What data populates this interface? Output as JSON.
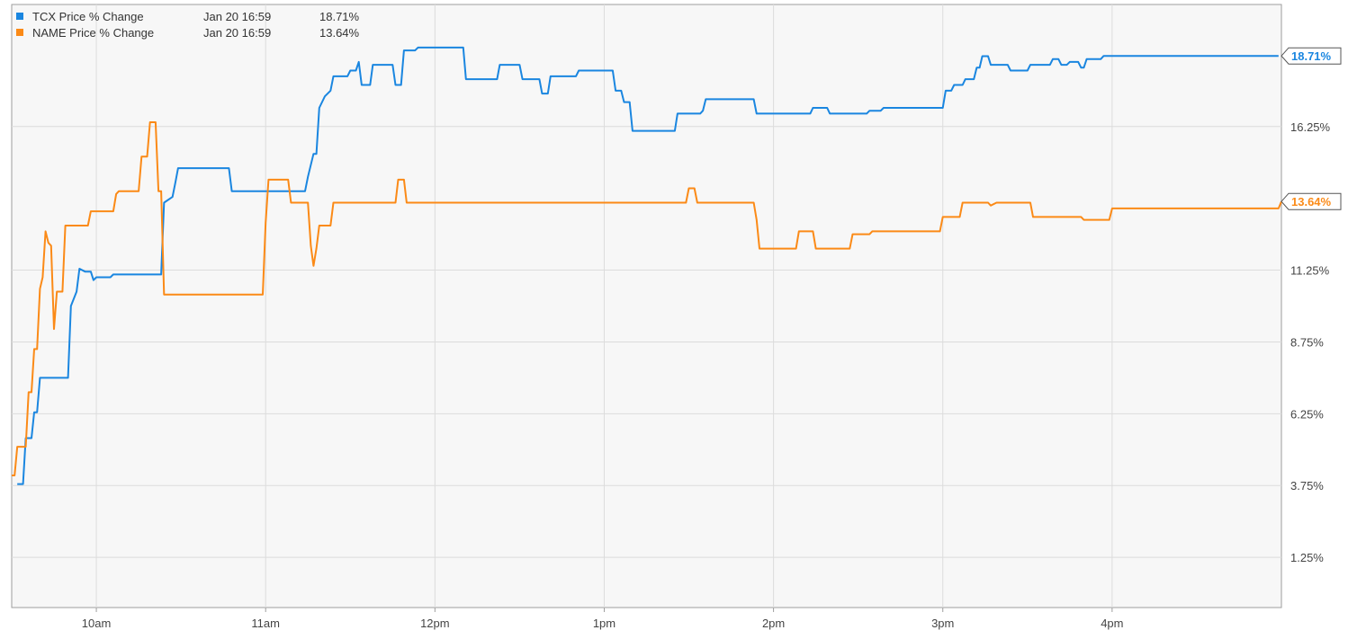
{
  "legend": {
    "series": [
      {
        "name": "TCX Price % Change",
        "time": "Jan 20 16:59",
        "value": "18.71%",
        "color": "#1a86e0"
      },
      {
        "name": "NAME Price % Change",
        "time": "Jan 20 16:59",
        "value": "13.64%",
        "color": "#fb8a17"
      }
    ]
  },
  "chart_data": {
    "type": "line",
    "x_unit": "hours of day (24h clock)",
    "xlim": [
      9.5,
      17.0
    ],
    "ylim": [
      -0.5,
      20.5
    ],
    "y_ticks": [
      1.25,
      3.75,
      6.25,
      8.75,
      11.25,
      16.25
    ],
    "y_tick_labels": [
      "1.25%",
      "3.75%",
      "6.25%",
      "8.75%",
      "11.25%",
      "16.25%"
    ],
    "x_ticks": [
      10,
      11,
      12,
      13,
      14,
      15,
      16
    ],
    "x_tick_labels": [
      "10am",
      "11am",
      "12pm",
      "1pm",
      "2pm",
      "3pm",
      "4pm"
    ],
    "grid": true,
    "legend_position": "top-left",
    "end_labels": [
      "18.71%",
      "13.64%"
    ],
    "series": [
      {
        "name": "TCX Price % Change",
        "color": "#1a86e0",
        "points": [
          [
            9.533,
            3.8
          ],
          [
            9.567,
            3.8
          ],
          [
            9.583,
            5.4
          ],
          [
            9.617,
            5.4
          ],
          [
            9.633,
            6.3
          ],
          [
            9.65,
            6.3
          ],
          [
            9.667,
            7.5
          ],
          [
            9.833,
            7.5
          ],
          [
            9.85,
            10.0
          ],
          [
            9.883,
            10.5
          ],
          [
            9.9,
            11.3
          ],
          [
            9.933,
            11.2
          ],
          [
            9.967,
            11.2
          ],
          [
            9.983,
            10.9
          ],
          [
            10.0,
            11.0
          ],
          [
            10.083,
            11.0
          ],
          [
            10.1,
            11.1
          ],
          [
            10.383,
            11.1
          ],
          [
            10.4,
            13.6
          ],
          [
            10.45,
            13.8
          ],
          [
            10.467,
            14.3
          ],
          [
            10.483,
            14.8
          ],
          [
            10.783,
            14.8
          ],
          [
            10.8,
            14.0
          ],
          [
            11.233,
            14.0
          ],
          [
            11.25,
            14.5
          ],
          [
            11.283,
            15.3
          ],
          [
            11.3,
            15.3
          ],
          [
            11.317,
            16.9
          ],
          [
            11.35,
            17.3
          ],
          [
            11.383,
            17.5
          ],
          [
            11.4,
            18.0
          ],
          [
            11.483,
            18.0
          ],
          [
            11.5,
            18.2
          ],
          [
            11.533,
            18.2
          ],
          [
            11.55,
            18.5
          ],
          [
            11.567,
            17.7
          ],
          [
            11.617,
            17.7
          ],
          [
            11.633,
            18.4
          ],
          [
            11.75,
            18.4
          ],
          [
            11.767,
            17.7
          ],
          [
            11.8,
            17.7
          ],
          [
            11.817,
            18.9
          ],
          [
            11.883,
            18.9
          ],
          [
            11.9,
            19.0
          ],
          [
            12.167,
            19.0
          ],
          [
            12.183,
            17.9
          ],
          [
            12.367,
            17.9
          ],
          [
            12.383,
            18.4
          ],
          [
            12.5,
            18.4
          ],
          [
            12.517,
            17.9
          ],
          [
            12.617,
            17.9
          ],
          [
            12.633,
            17.4
          ],
          [
            12.667,
            17.4
          ],
          [
            12.683,
            18.0
          ],
          [
            12.833,
            18.0
          ],
          [
            12.85,
            18.2
          ],
          [
            13.05,
            18.2
          ],
          [
            13.067,
            17.5
          ],
          [
            13.1,
            17.5
          ],
          [
            13.117,
            17.1
          ],
          [
            13.15,
            17.1
          ],
          [
            13.167,
            16.1
          ],
          [
            13.417,
            16.1
          ],
          [
            13.433,
            16.7
          ],
          [
            13.567,
            16.7
          ],
          [
            13.583,
            16.8
          ],
          [
            13.6,
            17.2
          ],
          [
            13.883,
            17.2
          ],
          [
            13.9,
            16.7
          ],
          [
            14.217,
            16.7
          ],
          [
            14.233,
            16.9
          ],
          [
            14.317,
            16.9
          ],
          [
            14.333,
            16.7
          ],
          [
            14.55,
            16.7
          ],
          [
            14.567,
            16.8
          ],
          [
            14.633,
            16.8
          ],
          [
            14.65,
            16.9
          ],
          [
            14.8,
            16.9
          ],
          [
            15.0,
            16.9
          ],
          [
            15.017,
            17.5
          ],
          [
            15.05,
            17.5
          ],
          [
            15.067,
            17.7
          ],
          [
            15.117,
            17.7
          ],
          [
            15.133,
            17.9
          ],
          [
            15.183,
            17.9
          ],
          [
            15.2,
            18.3
          ],
          [
            15.217,
            18.3
          ],
          [
            15.233,
            18.7
          ],
          [
            15.267,
            18.7
          ],
          [
            15.283,
            18.4
          ],
          [
            15.383,
            18.4
          ],
          [
            15.4,
            18.2
          ],
          [
            15.5,
            18.2
          ],
          [
            15.517,
            18.4
          ],
          [
            15.633,
            18.4
          ],
          [
            15.65,
            18.6
          ],
          [
            15.683,
            18.6
          ],
          [
            15.7,
            18.4
          ],
          [
            15.733,
            18.4
          ],
          [
            15.75,
            18.5
          ],
          [
            15.8,
            18.5
          ],
          [
            15.817,
            18.3
          ],
          [
            15.833,
            18.3
          ],
          [
            15.85,
            18.6
          ],
          [
            15.933,
            18.6
          ],
          [
            15.95,
            18.71
          ],
          [
            16.983,
            18.71
          ]
        ]
      },
      {
        "name": "NAME Price % Change",
        "color": "#fb8a17",
        "points": [
          [
            9.5,
            4.1
          ],
          [
            9.517,
            4.1
          ],
          [
            9.533,
            5.1
          ],
          [
            9.583,
            5.1
          ],
          [
            9.6,
            7.0
          ],
          [
            9.617,
            7.0
          ],
          [
            9.633,
            8.5
          ],
          [
            9.65,
            8.5
          ],
          [
            9.667,
            10.6
          ],
          [
            9.683,
            11.0
          ],
          [
            9.7,
            12.6
          ],
          [
            9.717,
            12.2
          ],
          [
            9.733,
            12.1
          ],
          [
            9.75,
            9.2
          ],
          [
            9.767,
            10.5
          ],
          [
            9.8,
            10.5
          ],
          [
            9.817,
            12.8
          ],
          [
            9.95,
            12.8
          ],
          [
            9.967,
            13.3
          ],
          [
            10.1,
            13.3
          ],
          [
            10.117,
            13.9
          ],
          [
            10.133,
            14.0
          ],
          [
            10.25,
            14.0
          ],
          [
            10.267,
            15.2
          ],
          [
            10.3,
            15.2
          ],
          [
            10.317,
            16.4
          ],
          [
            10.35,
            16.4
          ],
          [
            10.367,
            14.0
          ],
          [
            10.383,
            14.0
          ],
          [
            10.4,
            10.4
          ],
          [
            10.983,
            10.4
          ],
          [
            11.0,
            12.9
          ],
          [
            11.017,
            14.4
          ],
          [
            11.133,
            14.4
          ],
          [
            11.15,
            13.6
          ],
          [
            11.25,
            13.6
          ],
          [
            11.267,
            12.1
          ],
          [
            11.283,
            11.4
          ],
          [
            11.3,
            12.0
          ],
          [
            11.317,
            12.8
          ],
          [
            11.383,
            12.8
          ],
          [
            11.4,
            13.6
          ],
          [
            11.767,
            13.6
          ],
          [
            11.783,
            14.4
          ],
          [
            11.817,
            14.4
          ],
          [
            11.833,
            13.6
          ],
          [
            13.483,
            13.6
          ],
          [
            13.5,
            14.1
          ],
          [
            13.533,
            14.1
          ],
          [
            13.55,
            13.6
          ],
          [
            13.883,
            13.6
          ],
          [
            13.9,
            13.0
          ],
          [
            13.917,
            12.0
          ],
          [
            14.133,
            12.0
          ],
          [
            14.15,
            12.6
          ],
          [
            14.233,
            12.6
          ],
          [
            14.25,
            12.0
          ],
          [
            14.45,
            12.0
          ],
          [
            14.467,
            12.5
          ],
          [
            14.567,
            12.5
          ],
          [
            14.583,
            12.6
          ],
          [
            14.983,
            12.6
          ],
          [
            15.0,
            13.1
          ],
          [
            15.1,
            13.1
          ],
          [
            15.117,
            13.6
          ],
          [
            15.267,
            13.6
          ],
          [
            15.283,
            13.5
          ],
          [
            15.317,
            13.6
          ],
          [
            15.517,
            13.6
          ],
          [
            15.533,
            13.1
          ],
          [
            15.817,
            13.1
          ],
          [
            15.833,
            13.0
          ],
          [
            15.983,
            13.0
          ],
          [
            16.0,
            13.4
          ],
          [
            16.983,
            13.4
          ],
          [
            17.0,
            13.64
          ]
        ]
      }
    ]
  }
}
